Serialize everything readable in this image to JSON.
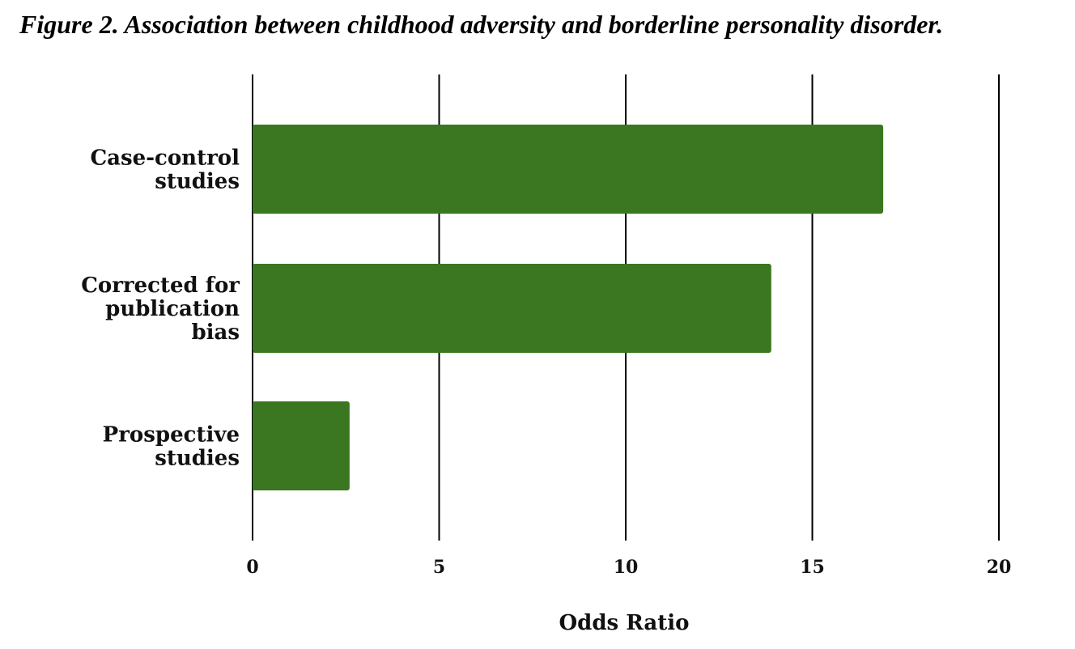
{
  "figure": {
    "caption": "Figure 2. Association between childhood adversity and borderline personality disorder."
  },
  "chart_data": {
    "type": "bar",
    "orientation": "horizontal",
    "title": "",
    "categories": [
      [
        "Case-control",
        "studies"
      ],
      [
        "Corrected for",
        "publication",
        "bias"
      ],
      [
        "Prospective",
        "studies"
      ]
    ],
    "values": [
      16.9,
      13.9,
      2.6
    ],
    "xlabel": "Odds Ratio",
    "ylabel": "",
    "xlim": [
      0,
      20
    ],
    "xticks": [
      "0",
      "5",
      "10",
      "15",
      "20"
    ],
    "grid": true,
    "bar_color": "#3a7720",
    "gridline_color": "#000000"
  }
}
